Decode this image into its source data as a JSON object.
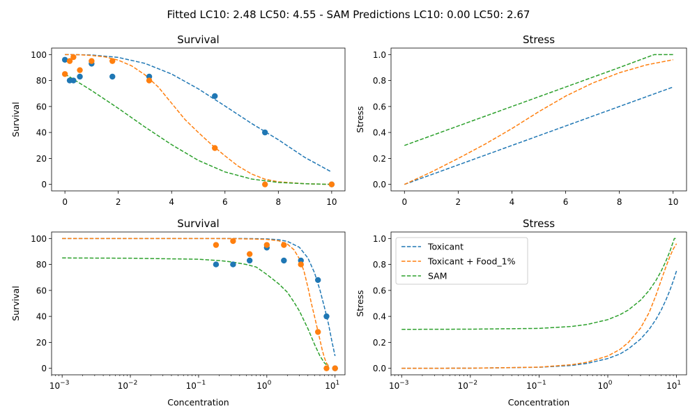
{
  "figure": {
    "suptitle": "Fitted LC10: 2.48 LC50: 4.55 - SAM Predictions LC10: 0.00 LC50: 2.67"
  },
  "colors": {
    "toxicant": "#1f77b4",
    "food": "#ff7f0e",
    "sam": "#2ca02c"
  },
  "chart_data": [
    {
      "type": "line",
      "title": "Survival",
      "xlabel": "",
      "ylabel": "Survival",
      "xscale": "linear",
      "xlim": [
        -0.5,
        10.5
      ],
      "ylim": [
        -5,
        105
      ],
      "xticks": [
        0,
        2,
        4,
        6,
        8,
        10
      ],
      "xtick_labels": [
        "0",
        "2",
        "4",
        "6",
        "8",
        "10"
      ],
      "yticks": [
        0,
        20,
        40,
        60,
        80,
        100
      ],
      "ytick_labels": [
        "0",
        "20",
        "40",
        "60",
        "80",
        "100"
      ],
      "scatter": [
        {
          "color": "toxicant",
          "x": [
            0,
            0.18,
            0.32,
            0.56,
            1.0,
            1.78,
            3.16,
            5.62,
            7.5,
            10
          ],
          "y": [
            96,
            80,
            80,
            83,
            93,
            83,
            83,
            68,
            40,
            0
          ]
        },
        {
          "color": "food",
          "x": [
            0,
            0.18,
            0.32,
            0.56,
            1.0,
            1.78,
            3.16,
            5.62,
            7.5,
            10
          ],
          "y": [
            85,
            95,
            98,
            88,
            95,
            95,
            80,
            28,
            0,
            0
          ]
        }
      ],
      "series": [
        {
          "color": "toxicant",
          "x": [
            0,
            1,
            2,
            3,
            4,
            5,
            6,
            7,
            8,
            9,
            10
          ],
          "y": [
            100,
            99.7,
            97.8,
            93.2,
            85,
            73.6,
            60.4,
            46.9,
            34.4,
            20.7,
            9.5
          ]
        },
        {
          "color": "food",
          "x": [
            0,
            0.5,
            1,
            1.5,
            2,
            2.5,
            3,
            3.5,
            4,
            4.5,
            5,
            5.5,
            6,
            6.5,
            7,
            7.5,
            8,
            9,
            10
          ],
          "y": [
            100,
            99.9,
            99.3,
            98.2,
            95.7,
            91.3,
            84.4,
            75,
            62.5,
            50,
            40,
            30.6,
            22,
            14,
            8,
            4,
            2,
            0.5,
            0
          ]
        },
        {
          "color": "sam",
          "x": [
            0,
            1,
            2,
            3,
            4,
            5,
            6,
            7,
            8,
            9,
            10
          ],
          "y": [
            85,
            72.3,
            58.6,
            44.2,
            30.6,
            18.5,
            9.6,
            4.1,
            1.5,
            0.5,
            0
          ]
        }
      ]
    },
    {
      "type": "line",
      "title": "Stress",
      "xlabel": "",
      "ylabel": "Stress",
      "xscale": "linear",
      "xlim": [
        -0.5,
        10.5
      ],
      "ylim": [
        -0.05,
        1.05
      ],
      "xticks": [
        0,
        2,
        4,
        6,
        8,
        10
      ],
      "xtick_labels": [
        "0",
        "2",
        "4",
        "6",
        "8",
        "10"
      ],
      "yticks": [
        0,
        0.2,
        0.4,
        0.6,
        0.8,
        1.0
      ],
      "ytick_labels": [
        "0.0",
        "0.2",
        "0.4",
        "0.6",
        "0.8",
        "1.0"
      ],
      "scatter": [],
      "series": [
        {
          "color": "toxicant",
          "x": [
            0,
            2,
            4,
            6,
            8,
            10
          ],
          "y": [
            0,
            0.15,
            0.3,
            0.45,
            0.6,
            0.75
          ]
        },
        {
          "color": "food",
          "x": [
            0,
            1,
            2,
            3,
            4,
            5,
            6,
            7,
            8,
            9,
            10
          ],
          "y": [
            0,
            0.095,
            0.2,
            0.31,
            0.43,
            0.56,
            0.68,
            0.78,
            0.86,
            0.92,
            0.96
          ]
        },
        {
          "color": "sam",
          "x": [
            0,
            2,
            4,
            6,
            8,
            9.3,
            10
          ],
          "y": [
            0.3,
            0.45,
            0.6,
            0.75,
            0.9,
            1.0,
            1.0
          ]
        }
      ]
    },
    {
      "type": "line",
      "title": "Survival",
      "xlabel": "Concentration",
      "ylabel": "Survival",
      "xscale": "log",
      "xlim": [
        0.0007,
        14
      ],
      "ylim": [
        -5,
        105
      ],
      "xticks": [
        0.001,
        0.01,
        0.1,
        1,
        10
      ],
      "xtick_labels": [
        "10",
        "10",
        "10",
        "10",
        "10"
      ],
      "xtick_exponents": [
        "−3",
        "−2",
        "−1",
        "0",
        "1"
      ],
      "yticks": [
        0,
        20,
        40,
        60,
        80,
        100
      ],
      "ytick_labels": [
        "0",
        "20",
        "40",
        "60",
        "80",
        "100"
      ],
      "scatter": [
        {
          "color": "toxicant",
          "x": [
            0.18,
            0.32,
            0.56,
            1.0,
            1.78,
            3.16,
            5.62,
            7.5,
            10
          ],
          "y": [
            80,
            80,
            83,
            93,
            83,
            83,
            68,
            40,
            0
          ]
        },
        {
          "color": "food",
          "x": [
            0.18,
            0.32,
            0.56,
            1.0,
            1.78,
            3.16,
            5.62,
            7.5,
            10
          ],
          "y": [
            95,
            98,
            88,
            95,
            95,
            80,
            28,
            0,
            0
          ]
        }
      ],
      "series": [
        {
          "color": "toxicant",
          "x": [
            0.001,
            0.01,
            0.1,
            0.3,
            0.6,
            1,
            1.5,
            2,
            3,
            4,
            5,
            6,
            7,
            8,
            9,
            10
          ],
          "y": [
            100,
            100,
            100,
            100,
            99.9,
            99.7,
            99,
            97.8,
            93.2,
            85,
            73.6,
            60.4,
            46.9,
            34.4,
            20.7,
            9.5
          ]
        },
        {
          "color": "food",
          "x": [
            0.001,
            0.01,
            0.1,
            0.3,
            0.6,
            1,
            1.5,
            2,
            2.5,
            3,
            3.5,
            4,
            4.5,
            5,
            5.5,
            6,
            6.5,
            7,
            7.5,
            8
          ],
          "y": [
            100,
            100,
            100,
            99.9,
            99.6,
            99.3,
            98.2,
            95.7,
            91.3,
            84.4,
            75,
            62.5,
            50,
            40,
            30.6,
            22,
            14,
            8,
            4,
            2
          ]
        },
        {
          "color": "sam",
          "x": [
            0.001,
            0.01,
            0.1,
            0.2,
            0.3,
            0.5,
            0.7,
            1,
            1.5,
            2,
            2.5,
            3,
            4,
            5,
            6,
            7,
            8
          ],
          "y": [
            85,
            84.8,
            84,
            83,
            82,
            80,
            78,
            72.3,
            65,
            58.6,
            51,
            44.2,
            30.6,
            18.5,
            9.6,
            4.1,
            1.5
          ]
        }
      ]
    },
    {
      "type": "line",
      "title": "Stress",
      "xlabel": "Concentration",
      "ylabel": "Stress",
      "xscale": "log",
      "xlim": [
        0.0007,
        14
      ],
      "ylim": [
        -0.05,
        1.05
      ],
      "xticks": [
        0.001,
        0.01,
        0.1,
        1,
        10
      ],
      "xtick_labels": [
        "10",
        "10",
        "10",
        "10",
        "10"
      ],
      "xtick_exponents": [
        "−3",
        "−2",
        "−1",
        "0",
        "1"
      ],
      "yticks": [
        0,
        0.2,
        0.4,
        0.6,
        0.8,
        1.0
      ],
      "ytick_labels": [
        "0.0",
        "0.2",
        "0.4",
        "0.6",
        "0.8",
        "1.0"
      ],
      "scatter": [],
      "legend": {
        "placement": "upper-left",
        "entries": [
          {
            "label": "Toxicant",
            "color": "toxicant"
          },
          {
            "label": "Toxicant + Food_1%",
            "color": "food"
          },
          {
            "label": "SAM",
            "color": "sam"
          }
        ]
      },
      "series": [
        {
          "color": "toxicant",
          "x": [
            0.001,
            0.01,
            0.1,
            0.3,
            0.5,
            1,
            1.5,
            2,
            3,
            4,
            5,
            6,
            7,
            8,
            9,
            10
          ],
          "y": [
            0,
            0.001,
            0.008,
            0.022,
            0.038,
            0.075,
            0.11,
            0.15,
            0.225,
            0.3,
            0.375,
            0.45,
            0.525,
            0.6,
            0.675,
            0.75
          ]
        },
        {
          "color": "food",
          "x": [
            0.001,
            0.01,
            0.1,
            0.3,
            0.5,
            1,
            1.5,
            2,
            3,
            4,
            5,
            6,
            7,
            8,
            9,
            10
          ],
          "y": [
            0,
            0.001,
            0.009,
            0.028,
            0.047,
            0.095,
            0.145,
            0.2,
            0.31,
            0.43,
            0.56,
            0.68,
            0.78,
            0.86,
            0.92,
            0.96
          ]
        },
        {
          "color": "sam",
          "x": [
            0.001,
            0.01,
            0.1,
            0.3,
            0.5,
            1,
            1.5,
            2,
            3,
            4,
            5,
            6,
            7,
            8,
            9.3,
            10
          ],
          "y": [
            0.3,
            0.3015,
            0.3075,
            0.3225,
            0.3375,
            0.375,
            0.4125,
            0.45,
            0.525,
            0.6,
            0.675,
            0.75,
            0.825,
            0.9,
            1.0,
            1.0
          ]
        }
      ]
    }
  ]
}
